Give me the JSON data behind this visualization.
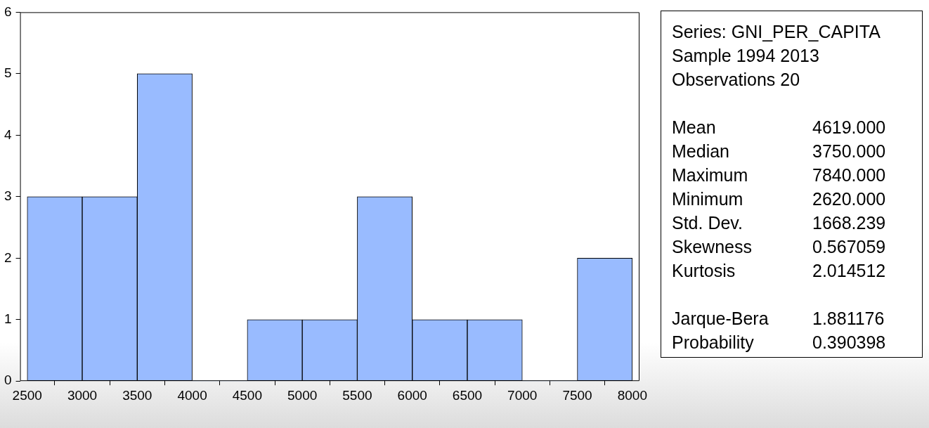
{
  "chart_data": {
    "type": "histogram",
    "bins": [
      2500,
      3000,
      3500,
      4000,
      4500,
      5000,
      5500,
      6000,
      6500,
      7000,
      7500,
      8000
    ],
    "values": [
      3,
      3,
      5,
      0,
      1,
      1,
      3,
      1,
      1,
      0,
      2
    ],
    "color": "#99bbff",
    "xlim": [
      2435,
      8065
    ],
    "xticks": [
      2500,
      3000,
      3500,
      4000,
      4500,
      5000,
      5500,
      6000,
      6500,
      7000,
      7500,
      8000
    ],
    "ylim": [
      0,
      6
    ],
    "yticks": [
      0,
      1,
      2,
      3,
      4,
      5,
      6
    ],
    "grid": false,
    "legend": false,
    "annotations": [
      "Series: GNI_PER_CAPITA",
      "Sample 1994 2013",
      "Observations 20",
      "Mean 4619.000",
      "Median 3750.000",
      "Maximum 7840.000",
      "Minimum 2620.000",
      "Std. Dev. 1668.239",
      "Skewness 0.567059",
      "Kurtosis 2.014512",
      "Jarque-Bera 1.881176",
      "Probability 0.390398"
    ]
  }
}
